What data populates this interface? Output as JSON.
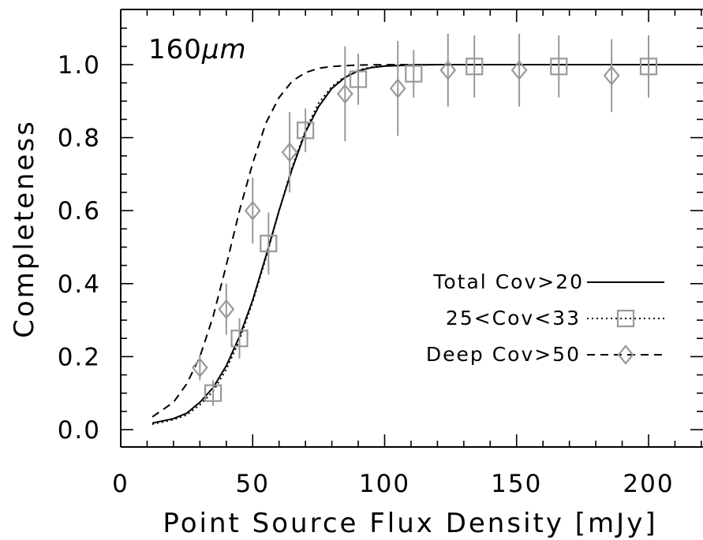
{
  "chart_data": {
    "type": "scatter",
    "title": "",
    "annotation": {
      "text": "160",
      "unit": "μm"
    },
    "xlabel": "Point Source Flux Density [mJy]",
    "ylabel": "Completeness",
    "xlim": [
      0,
      222
    ],
    "ylim": [
      -0.05,
      1.15
    ],
    "x_ticks": [
      0,
      50,
      100,
      150,
      200
    ],
    "y_ticks": [
      0.0,
      0.2,
      0.4,
      0.6,
      0.8,
      1.0
    ],
    "x_tick_labels": [
      "0",
      "50",
      "100",
      "150",
      "200"
    ],
    "y_tick_labels": [
      "0.0",
      "0.2",
      "0.4",
      "0.6",
      "0.8",
      "1.0"
    ],
    "x_minor_step": 10,
    "y_minor_step": 0.05,
    "legend_position": "center-right",
    "series": [
      {
        "name": "Total Cov>20",
        "kind": "line",
        "style": "solid",
        "color": "#000000",
        "x": [
          12,
          20,
          25,
          30,
          35,
          40,
          45,
          50,
          55,
          60,
          65,
          70,
          75,
          80,
          85,
          90,
          95,
          100,
          110,
          120,
          130,
          150,
          170,
          200,
          222
        ],
        "y": [
          0.018,
          0.03,
          0.045,
          0.075,
          0.115,
          0.175,
          0.255,
          0.355,
          0.475,
          0.6,
          0.715,
          0.815,
          0.885,
          0.935,
          0.965,
          0.983,
          0.992,
          0.996,
          0.999,
          1.0,
          1.0,
          1.0,
          1.0,
          1.0,
          1.0
        ]
      },
      {
        "name": "25<Cov<33",
        "kind": "line+markers",
        "style": "dotted",
        "marker": "square",
        "color": "#000000",
        "marker_color": "#999999",
        "x": [
          12,
          20,
          25,
          30,
          35,
          40,
          45,
          50,
          55,
          60,
          65,
          70,
          75,
          80,
          85,
          90,
          95,
          100,
          110,
          120,
          130,
          150,
          170,
          200,
          222
        ],
        "y": [
          0.015,
          0.027,
          0.04,
          0.068,
          0.105,
          0.165,
          0.245,
          0.35,
          0.47,
          0.6,
          0.72,
          0.82,
          0.895,
          0.94,
          0.968,
          0.985,
          0.993,
          0.997,
          0.999,
          1.0,
          1.0,
          1.0,
          1.0,
          1.0,
          1.0
        ],
        "points": [
          {
            "x": 35,
            "y": 0.1,
            "err": 0.035
          },
          {
            "x": 45,
            "y": 0.25,
            "err": 0.055
          },
          {
            "x": 56,
            "y": 0.51,
            "err": 0.085
          },
          {
            "x": 70,
            "y": 0.82,
            "err": 0.06
          },
          {
            "x": 90,
            "y": 0.96,
            "err": 0.07
          },
          {
            "x": 111,
            "y": 0.975,
            "err": 0.065
          },
          {
            "x": 134,
            "y": 0.995,
            "err": 0.085
          },
          {
            "x": 166,
            "y": 0.995,
            "err": 0.085
          },
          {
            "x": 200,
            "y": 0.995,
            "err": 0.085
          }
        ]
      },
      {
        "name": "Deep Cov>50",
        "kind": "line+markers",
        "style": "dashed",
        "marker": "diamond",
        "color": "#000000",
        "marker_color": "#999999",
        "x": [
          12,
          20,
          25,
          30,
          35,
          40,
          45,
          50,
          55,
          60,
          65,
          70,
          75,
          80,
          90,
          100,
          110,
          130,
          150,
          200,
          222
        ],
        "y": [
          0.035,
          0.075,
          0.125,
          0.2,
          0.31,
          0.45,
          0.6,
          0.73,
          0.84,
          0.91,
          0.955,
          0.978,
          0.99,
          0.995,
          0.999,
          1.0,
          1.0,
          1.0,
          1.0,
          1.0,
          1.0
        ],
        "points": [
          {
            "x": 30,
            "y": 0.17,
            "err": 0.035
          },
          {
            "x": 40,
            "y": 0.33,
            "err": 0.07
          },
          {
            "x": 50,
            "y": 0.6,
            "err": 0.09
          },
          {
            "x": 64,
            "y": 0.76,
            "err": 0.11
          },
          {
            "x": 85,
            "y": 0.92,
            "err": 0.13
          },
          {
            "x": 105,
            "y": 0.935,
            "err": 0.13
          },
          {
            "x": 124,
            "y": 0.985,
            "err": 0.1
          },
          {
            "x": 151,
            "y": 0.985,
            "err": 0.1
          },
          {
            "x": 186,
            "y": 0.97,
            "err": 0.1
          }
        ]
      }
    ]
  }
}
